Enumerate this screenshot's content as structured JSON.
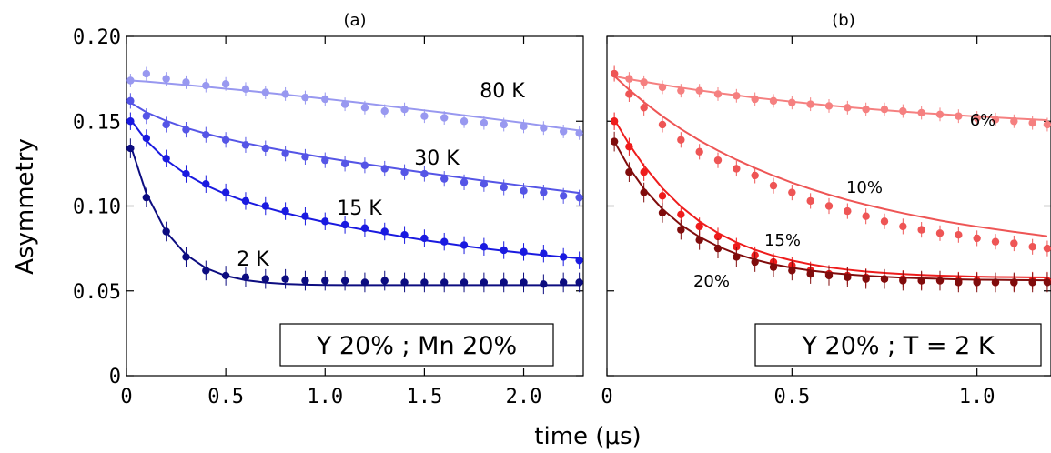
{
  "chart_data": [
    {
      "type": "scatter",
      "title": "(a)",
      "xlabel": "time (μs)",
      "ylabel": "Asymmetry",
      "xlim": [
        0,
        2.3
      ],
      "ylim": [
        0,
        0.2
      ],
      "x_ticks": [
        "0",
        "0.5",
        "1.0",
        "1.5",
        "2.0"
      ],
      "y_ticks": [
        "0",
        "0.05",
        "0.10",
        "0.15",
        "0.20"
      ],
      "annotation": "Y 20% ; Mn 20%",
      "grid": false,
      "x": [
        0.02,
        0.1,
        0.2,
        0.3,
        0.4,
        0.5,
        0.6,
        0.7,
        0.8,
        0.9,
        1.0,
        1.1,
        1.2,
        1.3,
        1.4,
        1.5,
        1.6,
        1.7,
        1.8,
        1.9,
        2.0,
        2.1,
        2.2,
        2.28
      ],
      "series": [
        {
          "name": "80 K",
          "color": "#9898f0",
          "values": [
            0.174,
            0.178,
            0.175,
            0.173,
            0.171,
            0.172,
            0.169,
            0.167,
            0.166,
            0.164,
            0.163,
            0.16,
            0.158,
            0.156,
            0.157,
            0.153,
            0.152,
            0.15,
            0.149,
            0.148,
            0.147,
            0.146,
            0.144,
            0.143
          ],
          "fit": [
            0.174,
            0.1734,
            0.1724,
            0.1714,
            0.1703,
            0.1692,
            0.1681,
            0.1669,
            0.1657,
            0.1645,
            0.1632,
            0.1619,
            0.1606,
            0.1592,
            0.1578,
            0.1564,
            0.155,
            0.1535,
            0.152,
            0.1505,
            0.149,
            0.1474,
            0.1458,
            0.1445
          ]
        },
        {
          "name": "30 K",
          "color": "#5555e6",
          "values": [
            0.162,
            0.153,
            0.148,
            0.145,
            0.142,
            0.139,
            0.136,
            0.134,
            0.131,
            0.129,
            0.127,
            0.125,
            0.124,
            0.122,
            0.12,
            0.119,
            0.116,
            0.114,
            0.113,
            0.111,
            0.109,
            0.108,
            0.106,
            0.105
          ],
          "fit": [
            0.161,
            0.1553,
            0.1502,
            0.1461,
            0.1427,
            0.1397,
            0.1371,
            0.1347,
            0.1325,
            0.1305,
            0.1285,
            0.1266,
            0.1248,
            0.1231,
            0.1214,
            0.1197,
            0.1181,
            0.1165,
            0.1149,
            0.1134,
            0.1119,
            0.1104,
            0.1089,
            0.1077
          ]
        },
        {
          "name": "15 K",
          "color": "#1a1ae0",
          "values": [
            0.15,
            0.14,
            0.128,
            0.119,
            0.113,
            0.108,
            0.103,
            0.1,
            0.097,
            0.094,
            0.091,
            0.089,
            0.087,
            0.085,
            0.083,
            0.081,
            0.079,
            0.077,
            0.076,
            0.074,
            0.073,
            0.072,
            0.07,
            0.068
          ],
          "fit": [
            0.151,
            0.1386,
            0.1272,
            0.1187,
            0.1122,
            0.107,
            0.1027,
            0.0991,
            0.0959,
            0.0931,
            0.0905,
            0.0881,
            0.0859,
            0.0838,
            0.0818,
            0.0799,
            0.0782,
            0.0765,
            0.075,
            0.0736,
            0.0723,
            0.0711,
            0.07,
            0.0692
          ]
        },
        {
          "name": "2 K",
          "color": "#0c0c80",
          "values": [
            0.134,
            0.105,
            0.085,
            0.07,
            0.062,
            0.059,
            0.058,
            0.057,
            0.057,
            0.056,
            0.056,
            0.056,
            0.055,
            0.056,
            0.055,
            0.055,
            0.055,
            0.055,
            0.055,
            0.055,
            0.055,
            0.054,
            0.055,
            0.055
          ],
          "fit": [
            0.136,
            0.1073,
            0.0847,
            0.0713,
            0.0634,
            0.0589,
            0.0563,
            0.0549,
            0.0541,
            0.0537,
            0.0535,
            0.0534,
            0.0534,
            0.0534,
            0.0534,
            0.0534,
            0.0534,
            0.0534,
            0.0534,
            0.0534,
            0.0534,
            0.0534,
            0.0534,
            0.0534
          ]
        }
      ]
    },
    {
      "type": "scatter",
      "title": "(b)",
      "xlabel": "time (μs)",
      "ylabel": "Asymmetry",
      "xlim": [
        0,
        1.2
      ],
      "ylim": [
        0,
        0.2
      ],
      "x_ticks": [
        "0",
        "0.5",
        "1.0"
      ],
      "annotation": "Y 20% ;   T = 2 K",
      "grid": false,
      "x": [
        0.02,
        0.06,
        0.1,
        0.15,
        0.2,
        0.25,
        0.3,
        0.35,
        0.4,
        0.45,
        0.5,
        0.55,
        0.6,
        0.65,
        0.7,
        0.75,
        0.8,
        0.85,
        0.9,
        0.95,
        1.0,
        1.05,
        1.1,
        1.15,
        1.19
      ],
      "series": [
        {
          "name": "6%",
          "color": "#f58080",
          "values": [
            0.178,
            0.175,
            0.173,
            0.17,
            0.168,
            0.168,
            0.166,
            0.165,
            0.163,
            0.162,
            0.161,
            0.16,
            0.159,
            0.158,
            0.157,
            0.157,
            0.156,
            0.155,
            0.154,
            0.153,
            0.152,
            0.151,
            0.15,
            0.149,
            0.148
          ],
          "fit": [
            0.1765,
            0.1748,
            0.1733,
            0.1715,
            0.1698,
            0.1682,
            0.1667,
            0.1653,
            0.1639,
            0.1627,
            0.1615,
            0.1604,
            0.1593,
            0.1583,
            0.1574,
            0.1565,
            0.1557,
            0.1549,
            0.1542,
            0.1535,
            0.1528,
            0.1522,
            0.1516,
            0.1511,
            0.1506
          ]
        },
        {
          "name": "10%",
          "color": "#ee5555",
          "values": [
            0.178,
            0.166,
            0.158,
            0.148,
            0.139,
            0.132,
            0.127,
            0.122,
            0.118,
            0.112,
            0.108,
            0.103,
            0.1,
            0.097,
            0.094,
            0.091,
            0.088,
            0.086,
            0.084,
            0.083,
            0.081,
            0.079,
            0.078,
            0.076,
            0.075
          ],
          "fit": [
            0.1766,
            0.1686,
            0.1613,
            0.1529,
            0.1454,
            0.1387,
            0.1327,
            0.1273,
            0.1224,
            0.1179,
            0.1138,
            0.1101,
            0.1067,
            0.1036,
            0.1008,
            0.0982,
            0.0958,
            0.0936,
            0.0915,
            0.0896,
            0.0879,
            0.0863,
            0.0848,
            0.0834,
            0.0822
          ]
        },
        {
          "name": "15%",
          "color": "#ee1c1c",
          "values": [
            0.15,
            0.135,
            0.12,
            0.106,
            0.095,
            0.088,
            0.082,
            0.076,
            0.071,
            0.067,
            0.065,
            0.062,
            0.06,
            0.059,
            0.058,
            0.057,
            0.057,
            0.056,
            0.056,
            0.056,
            0.056,
            0.055,
            0.055,
            0.056,
            0.056
          ],
          "fit": [
            0.151,
            0.1364,
            0.1237,
            0.1105,
            0.0997,
            0.091,
            0.0841,
            0.0786,
            0.0742,
            0.0707,
            0.0679,
            0.0657,
            0.0639,
            0.0625,
            0.0614,
            0.0606,
            0.0599,
            0.0594,
            0.059,
            0.0587,
            0.0584,
            0.0582,
            0.0581,
            0.058,
            0.0579
          ]
        },
        {
          "name": "20%",
          "color": "#800c0c",
          "values": [
            0.138,
            0.12,
            0.108,
            0.096,
            0.086,
            0.08,
            0.075,
            0.07,
            0.067,
            0.064,
            0.062,
            0.06,
            0.059,
            0.058,
            0.057,
            0.057,
            0.056,
            0.056,
            0.056,
            0.055,
            0.055,
            0.055,
            0.055,
            0.055,
            0.055
          ],
          "fit": [
            0.138,
            0.1226,
            0.1102,
            0.0982,
            0.0889,
            0.0818,
            0.0762,
            0.0718,
            0.0684,
            0.0657,
            0.0636,
            0.062,
            0.0607,
            0.0597,
            0.0589,
            0.0583,
            0.0578,
            0.0574,
            0.0571,
            0.0568,
            0.0566,
            0.0565,
            0.0564,
            0.0563,
            0.0562
          ]
        }
      ]
    }
  ]
}
